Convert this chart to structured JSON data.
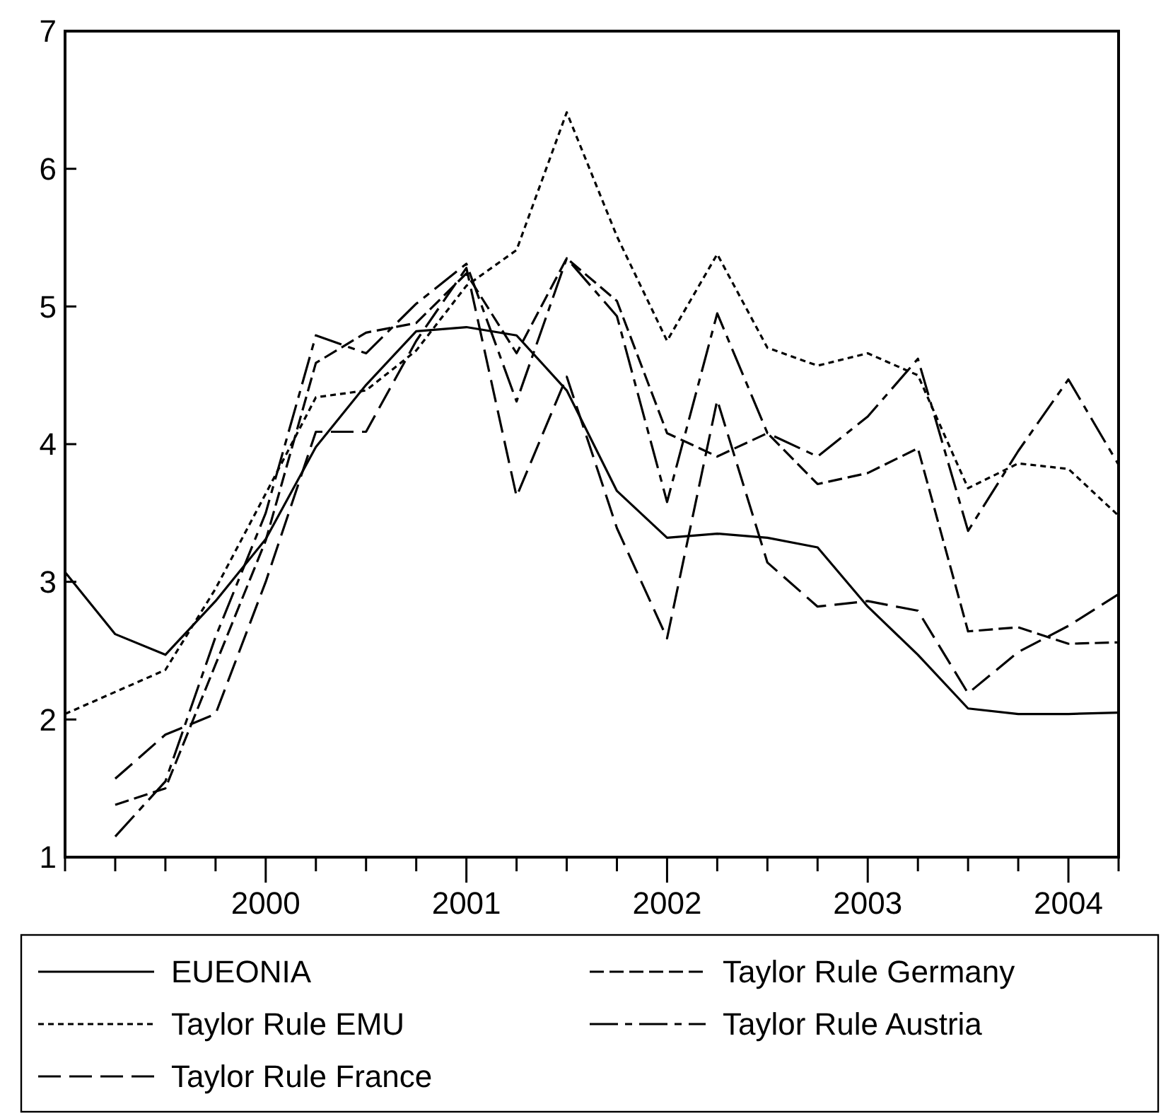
{
  "chart_data": {
    "type": "line",
    "x": [
      1999,
      1999.25,
      1999.5,
      1999.75,
      2000,
      2000.25,
      2000.5,
      2000.75,
      2001,
      2001.25,
      2001.5,
      2001.75,
      2002,
      2002.25,
      2002.5,
      2002.75,
      2003,
      2003.25,
      2003.5,
      2003.75,
      2004,
      2004.25
    ],
    "series": [
      {
        "name": "EUEONIA",
        "color": "#000000",
        "line_style": "solid",
        "values": [
          3.07,
          2.62,
          2.47,
          2.86,
          3.31,
          3.98,
          4.43,
          4.82,
          4.85,
          4.79,
          4.39,
          3.66,
          3.32,
          3.35,
          3.32,
          3.25,
          2.82,
          2.47,
          2.08,
          2.04,
          2.04,
          2.05
        ]
      },
      {
        "name": "Taylor Rule EMU",
        "color": "#000000",
        "line_style": "dotted",
        "values": [
          2.04,
          2.2,
          2.36,
          2.95,
          3.64,
          4.34,
          4.39,
          4.68,
          5.15,
          5.41,
          6.41,
          5.51,
          4.75,
          5.38,
          4.7,
          4.57,
          4.66,
          4.5,
          3.68,
          3.86,
          3.82,
          3.48
        ]
      },
      {
        "name": "Taylor Rule France",
        "color": "#000000",
        "line_style": "dashed",
        "values": [
          null,
          1.57,
          1.89,
          2.04,
          3.0,
          4.09,
          4.09,
          4.75,
          5.28,
          3.62,
          4.49,
          3.39,
          2.59,
          4.32,
          3.14,
          2.82,
          2.86,
          2.79,
          2.19,
          2.49,
          2.68,
          2.91
        ]
      },
      {
        "name": "Taylor Rule Germany",
        "color": "#000000",
        "line_style": "dashed",
        "values": [
          null,
          1.38,
          1.5,
          2.4,
          3.3,
          4.59,
          4.81,
          4.88,
          5.24,
          4.66,
          5.35,
          5.04,
          4.08,
          3.91,
          4.08,
          3.71,
          3.79,
          3.97,
          2.64,
          2.67,
          2.55,
          2.56
        ]
      },
      {
        "name": "Taylor Rule Austria",
        "color": "#000000",
        "line_style": "dashed",
        "values": [
          null,
          1.15,
          1.55,
          2.6,
          3.5,
          4.79,
          4.66,
          5.02,
          5.31,
          4.31,
          5.35,
          4.93,
          3.58,
          4.95,
          4.08,
          3.91,
          4.2,
          4.62,
          3.37,
          3.95,
          4.47,
          3.85
        ]
      }
    ],
    "xlim": [
      1999,
      2004.25
    ],
    "xticks": [
      {
        "value": 1999,
        "label": null
      },
      {
        "value": 1999.25,
        "label": null
      },
      {
        "value": 1999.5,
        "label": null
      },
      {
        "value": 1999.75,
        "label": null
      },
      2000,
      {
        "value": 2000.25,
        "label": null
      },
      {
        "value": 2000.5,
        "label": null
      },
      {
        "value": 2000.75,
        "label": null
      },
      2001,
      {
        "value": 2001.25,
        "label": null
      },
      {
        "value": 2001.5,
        "label": null
      },
      {
        "value": 2001.75,
        "label": null
      },
      2002,
      {
        "value": 2002.25,
        "label": null
      },
      {
        "value": 2002.5,
        "label": null
      },
      {
        "value": 2002.75,
        "label": null
      },
      2003,
      {
        "value": 2003.25,
        "label": null
      },
      {
        "value": 2003.5,
        "label": null
      },
      {
        "value": 2003.75,
        "label": null
      },
      2004,
      {
        "value": 2004.25,
        "label": null
      }
    ],
    "ylim": [
      1,
      7
    ],
    "yticks": [
      1,
      2,
      3,
      4,
      5,
      6,
      7
    ],
    "grid": false,
    "legend": "bottom",
    "marker": "none"
  }
}
